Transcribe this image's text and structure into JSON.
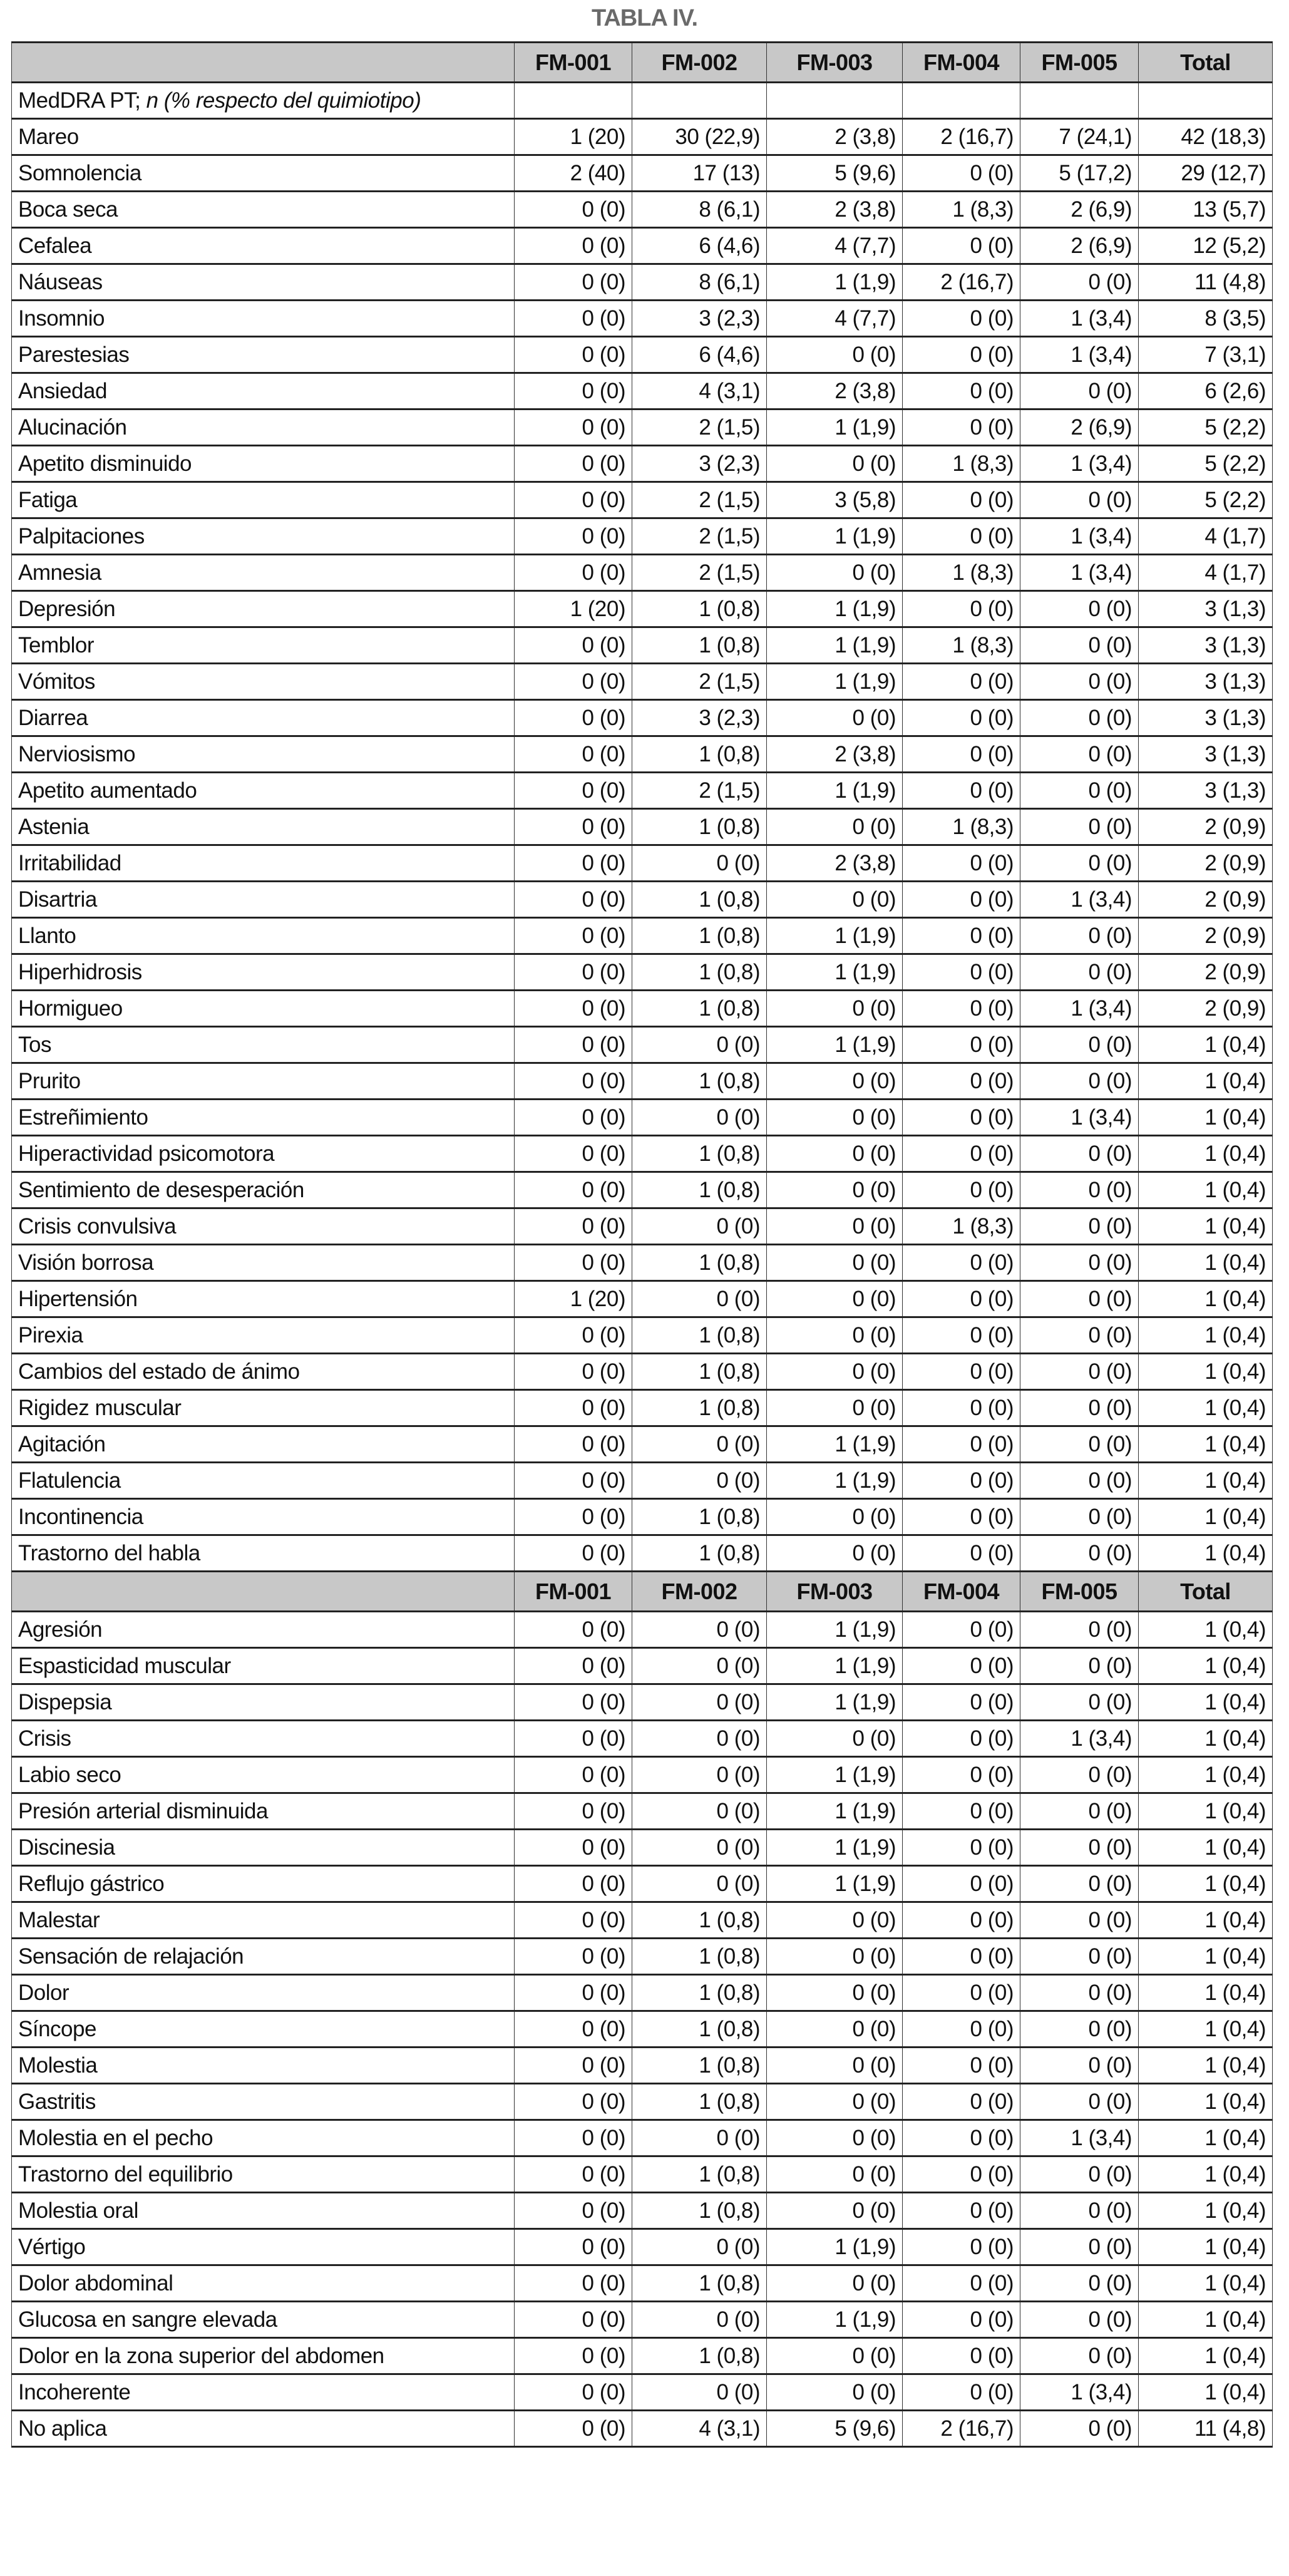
{
  "title": "TABLA IV.",
  "header_bg": "#c8c8c8",
  "columns": [
    "FM-001",
    "FM-002",
    "FM-003",
    "FM-004",
    "FM-005",
    "Total"
  ],
  "subheader": {
    "label": "MedDRA PT; ",
    "label_italic": "n (% respecto del quimiotipo)"
  },
  "section1": [
    [
      "Mareo",
      "1 (20)",
      "30 (22,9)",
      "2 (3,8)",
      "2 (16,7)",
      "7 (24,1)",
      "42 (18,3)"
    ],
    [
      "Somnolencia",
      "2 (40)",
      "17 (13)",
      "5 (9,6)",
      "0 (0)",
      "5 (17,2)",
      "29 (12,7)"
    ],
    [
      "Boca seca",
      "0 (0)",
      "8 (6,1)",
      "2 (3,8)",
      "1 (8,3)",
      "2 (6,9)",
      "13 (5,7)"
    ],
    [
      "Cefalea",
      "0 (0)",
      "6 (4,6)",
      "4 (7,7)",
      "0 (0)",
      "2 (6,9)",
      "12 (5,2)"
    ],
    [
      "Náuseas",
      "0 (0)",
      "8 (6,1)",
      "1 (1,9)",
      "2 (16,7)",
      "0 (0)",
      "11 (4,8)"
    ],
    [
      "Insomnio",
      "0 (0)",
      "3 (2,3)",
      "4 (7,7)",
      "0 (0)",
      "1 (3,4)",
      "8 (3,5)"
    ],
    [
      "Parestesias",
      "0 (0)",
      "6 (4,6)",
      "0 (0)",
      "0 (0)",
      "1 (3,4)",
      "7 (3,1)"
    ],
    [
      "Ansiedad",
      "0 (0)",
      "4 (3,1)",
      "2 (3,8)",
      "0 (0)",
      "0 (0)",
      "6 (2,6)"
    ],
    [
      "Alucinación",
      "0 (0)",
      "2 (1,5)",
      "1 (1,9)",
      "0 (0)",
      "2 (6,9)",
      "5 (2,2)"
    ],
    [
      "Apetito disminuido",
      "0 (0)",
      "3 (2,3)",
      "0 (0)",
      "1 (8,3)",
      "1 (3,4)",
      "5 (2,2)"
    ],
    [
      "Fatiga",
      "0 (0)",
      "2 (1,5)",
      "3 (5,8)",
      "0 (0)",
      "0 (0)",
      "5 (2,2)"
    ],
    [
      "Palpitaciones",
      "0 (0)",
      "2 (1,5)",
      "1 (1,9)",
      "0 (0)",
      "1 (3,4)",
      "4 (1,7)"
    ],
    [
      "Amnesia",
      "0 (0)",
      "2 (1,5)",
      "0 (0)",
      "1 (8,3)",
      "1 (3,4)",
      "4 (1,7)"
    ],
    [
      "Depresión",
      "1 (20)",
      "1 (0,8)",
      "1 (1,9)",
      "0 (0)",
      "0 (0)",
      "3 (1,3)"
    ],
    [
      "Temblor",
      "0 (0)",
      "1 (0,8)",
      "1 (1,9)",
      "1 (8,3)",
      "0 (0)",
      "3 (1,3)"
    ],
    [
      "Vómitos",
      "0 (0)",
      "2 (1,5)",
      "1 (1,9)",
      "0 (0)",
      "0 (0)",
      "3 (1,3)"
    ],
    [
      "Diarrea",
      "0 (0)",
      "3 (2,3)",
      "0 (0)",
      "0 (0)",
      "0 (0)",
      "3 (1,3)"
    ],
    [
      "Nerviosismo",
      "0 (0)",
      "1 (0,8)",
      "2 (3,8)",
      "0 (0)",
      "0 (0)",
      "3 (1,3)"
    ],
    [
      "Apetito aumentado",
      "0 (0)",
      "2 (1,5)",
      "1 (1,9)",
      "0 (0)",
      "0 (0)",
      "3 (1,3)"
    ],
    [
      "Astenia",
      "0 (0)",
      "1 (0,8)",
      "0 (0)",
      "1 (8,3)",
      "0 (0)",
      "2 (0,9)"
    ],
    [
      "Irritabilidad",
      "0 (0)",
      "0 (0)",
      "2 (3,8)",
      "0 (0)",
      "0 (0)",
      "2 (0,9)"
    ],
    [
      "Disartria",
      "0 (0)",
      "1 (0,8)",
      "0 (0)",
      "0 (0)",
      "1 (3,4)",
      "2 (0,9)"
    ],
    [
      "Llanto",
      "0 (0)",
      "1 (0,8)",
      "1 (1,9)",
      "0 (0)",
      "0 (0)",
      "2 (0,9)"
    ],
    [
      "Hiperhidrosis",
      "0 (0)",
      "1 (0,8)",
      "1 (1,9)",
      "0 (0)",
      "0 (0)",
      "2 (0,9)"
    ],
    [
      "Hormigueo",
      "0 (0)",
      "1 (0,8)",
      "0 (0)",
      "0 (0)",
      "1 (3,4)",
      "2 (0,9)"
    ],
    [
      "Tos",
      "0 (0)",
      "0 (0)",
      "1 (1,9)",
      "0 (0)",
      "0 (0)",
      "1 (0,4)"
    ],
    [
      "Prurito",
      "0 (0)",
      "1 (0,8)",
      "0 (0)",
      "0 (0)",
      "0 (0)",
      "1 (0,4)"
    ],
    [
      "Estreñimiento",
      "0 (0)",
      "0 (0)",
      "0 (0)",
      "0 (0)",
      "1 (3,4)",
      "1 (0,4)"
    ],
    [
      "Hiperactividad psicomotora",
      "0 (0)",
      "1 (0,8)",
      "0 (0)",
      "0 (0)",
      "0 (0)",
      "1 (0,4)"
    ],
    [
      "Sentimiento de desesperación",
      "0 (0)",
      "1 (0,8)",
      "0 (0)",
      "0 (0)",
      "0 (0)",
      "1 (0,4)"
    ],
    [
      "Crisis convulsiva",
      "0 (0)",
      "0 (0)",
      "0 (0)",
      "1 (8,3)",
      "0 (0)",
      "1 (0,4)"
    ],
    [
      "Visión borrosa",
      "0 (0)",
      "1 (0,8)",
      "0 (0)",
      "0 (0)",
      "0 (0)",
      "1 (0,4)"
    ],
    [
      "Hipertensión",
      "1 (20)",
      "0 (0)",
      "0 (0)",
      "0 (0)",
      "0 (0)",
      "1 (0,4)"
    ],
    [
      "Pirexia",
      "0 (0)",
      "1 (0,8)",
      "0 (0)",
      "0 (0)",
      "0 (0)",
      "1 (0,4)"
    ],
    [
      "Cambios del estado de ánimo",
      "0 (0)",
      "1 (0,8)",
      "0 (0)",
      "0 (0)",
      "0 (0)",
      "1 (0,4)"
    ],
    [
      "Rigidez muscular",
      "0 (0)",
      "1 (0,8)",
      "0 (0)",
      "0 (0)",
      "0 (0)",
      "1 (0,4)"
    ],
    [
      "Agitación",
      "0 (0)",
      "0 (0)",
      "1 (1,9)",
      "0 (0)",
      "0 (0)",
      "1 (0,4)"
    ],
    [
      "Flatulencia",
      "0 (0)",
      "0 (0)",
      "1 (1,9)",
      "0 (0)",
      "0 (0)",
      "1 (0,4)"
    ],
    [
      "Incontinencia",
      "0 (0)",
      "1 (0,8)",
      "0 (0)",
      "0 (0)",
      "0 (0)",
      "1 (0,4)"
    ],
    [
      "Trastorno del habla",
      "0 (0)",
      "1 (0,8)",
      "0 (0)",
      "0 (0)",
      "0 (0)",
      "1 (0,4)"
    ]
  ],
  "section2": [
    [
      "Agresión",
      "0 (0)",
      "0 (0)",
      "1 (1,9)",
      "0 (0)",
      "0 (0)",
      "1 (0,4)"
    ],
    [
      "Espasticidad muscular",
      "0 (0)",
      "0 (0)",
      "1 (1,9)",
      "0 (0)",
      "0 (0)",
      "1 (0,4)"
    ],
    [
      "Dispepsia",
      "0 (0)",
      "0 (0)",
      "1 (1,9)",
      "0 (0)",
      "0 (0)",
      "1 (0,4)"
    ],
    [
      "Crisis",
      "0 (0)",
      "0 (0)",
      "0 (0)",
      "0 (0)",
      "1 (3,4)",
      "1 (0,4)"
    ],
    [
      "Labio seco",
      "0 (0)",
      "0 (0)",
      "1 (1,9)",
      "0 (0)",
      "0 (0)",
      "1 (0,4)"
    ],
    [
      "Presión arterial disminuida",
      "0 (0)",
      "0 (0)",
      "1 (1,9)",
      "0 (0)",
      "0 (0)",
      "1 (0,4)"
    ],
    [
      "Discinesia",
      "0 (0)",
      "0 (0)",
      "1 (1,9)",
      "0 (0)",
      "0 (0)",
      "1 (0,4)"
    ],
    [
      "Reflujo gástrico",
      "0 (0)",
      "0 (0)",
      "1 (1,9)",
      "0 (0)",
      "0 (0)",
      "1 (0,4)"
    ],
    [
      "Malestar",
      "0 (0)",
      "1 (0,8)",
      "0 (0)",
      "0 (0)",
      "0 (0)",
      "1 (0,4)"
    ],
    [
      "Sensación de relajación",
      "0 (0)",
      "1 (0,8)",
      "0 (0)",
      "0 (0)",
      "0 (0)",
      "1 (0,4)"
    ],
    [
      "Dolor",
      "0 (0)",
      "1 (0,8)",
      "0 (0)",
      "0 (0)",
      "0 (0)",
      "1 (0,4)"
    ],
    [
      "Síncope",
      "0 (0)",
      "1 (0,8)",
      "0 (0)",
      "0 (0)",
      "0 (0)",
      "1 (0,4)"
    ],
    [
      "Molestia",
      "0 (0)",
      "1 (0,8)",
      "0 (0)",
      "0 (0)",
      "0 (0)",
      "1 (0,4)"
    ],
    [
      "Gastritis",
      "0 (0)",
      "1 (0,8)",
      "0 (0)",
      "0 (0)",
      "0 (0)",
      "1 (0,4)"
    ],
    [
      "Molestia en el pecho",
      "0 (0)",
      "0 (0)",
      "0 (0)",
      "0 (0)",
      "1 (3,4)",
      "1 (0,4)"
    ],
    [
      "Trastorno del equilibrio",
      "0 (0)",
      "1 (0,8)",
      "0 (0)",
      "0 (0)",
      "0 (0)",
      "1 (0,4)"
    ],
    [
      "Molestia oral",
      "0 (0)",
      "1 (0,8)",
      "0 (0)",
      "0 (0)",
      "0 (0)",
      "1 (0,4)"
    ],
    [
      "Vértigo",
      "0 (0)",
      "0 (0)",
      "1 (1,9)",
      "0 (0)",
      "0 (0)",
      "1 (0,4)"
    ],
    [
      "Dolor abdominal",
      "0 (0)",
      "1 (0,8)",
      "0 (0)",
      "0 (0)",
      "0 (0)",
      "1 (0,4)"
    ],
    [
      "Glucosa en sangre elevada",
      "0 (0)",
      "0 (0)",
      "1 (1,9)",
      "0 (0)",
      "0 (0)",
      "1 (0,4)"
    ],
    [
      "Dolor en la zona superior del abdomen",
      "0 (0)",
      "1 (0,8)",
      "0 (0)",
      "0 (0)",
      "0 (0)",
      "1 (0,4)"
    ],
    [
      "Incoherente",
      "0 (0)",
      "0 (0)",
      "0 (0)",
      "0 (0)",
      "1 (3,4)",
      "1 (0,4)"
    ],
    [
      "No aplica",
      "0 (0)",
      "4 (3,1)",
      "5 (9,6)",
      "2 (16,7)",
      "0 (0)",
      "11 (4,8)"
    ]
  ]
}
